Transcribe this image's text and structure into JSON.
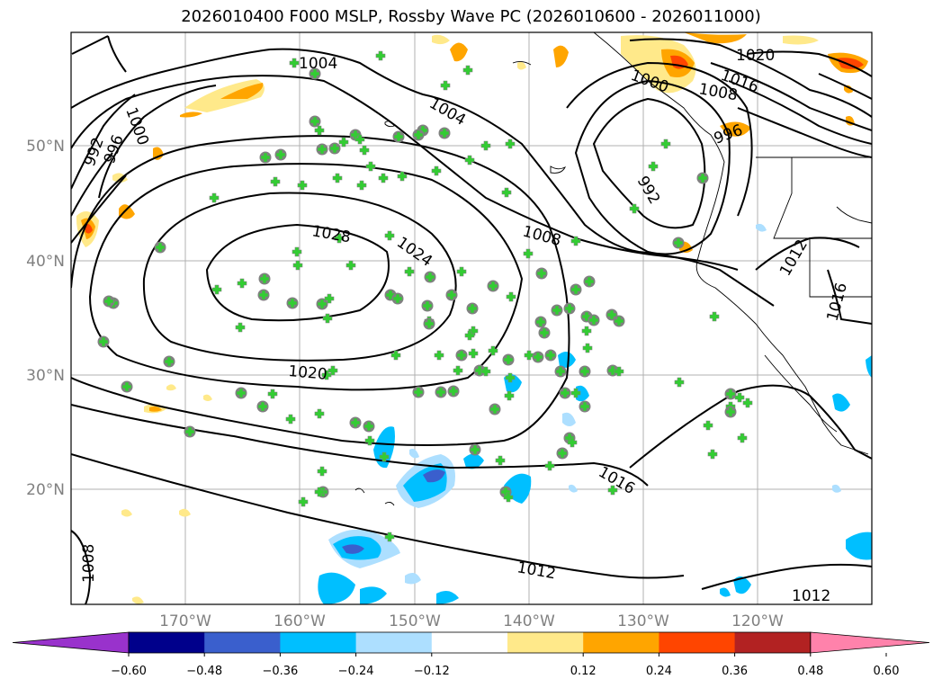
{
  "title": "2026010400 F000 MSLP, Rossby Wave PC (2026010600 - 2026011000)",
  "lat_labels": [
    "50°N",
    "40°N",
    "30°N",
    "20°N"
  ],
  "lon_labels": [
    "170°W",
    "160°W",
    "150°W",
    "140°W",
    "130°W",
    "120°W"
  ],
  "contour_labels": {
    "l1004a": "1004",
    "l1004b": "1004",
    "l1000a": "1000",
    "l1000b": "1000",
    "l992a": "992",
    "l996a": "996",
    "l992b": "992",
    "l996b": "996",
    "l1028": "1028",
    "l1024": "1024",
    "l1020": "1020",
    "l1008a": "1008",
    "l1012a": "1012",
    "l1016a": "1016",
    "l1016b": "1016",
    "l1012b": "1012",
    "l1012c": "1012",
    "l1008b": "1008",
    "l1020b": "1020",
    "l1008c": "1008",
    "l1016c": "1016"
  },
  "colorbar": {
    "ticks": [
      "−0.60",
      "−0.48",
      "−0.36",
      "−0.24",
      "−0.12",
      "0.12",
      "0.24",
      "0.36",
      "0.48",
      "0.60"
    ],
    "colors": [
      "#9932CC",
      "#00008B",
      "#3A5FCD",
      "#00BFFF",
      "#ADDFFF",
      "#FFFFFF",
      "#FFE98A",
      "#FFA500",
      "#FF4500",
      "#B22222",
      "#FF82AB"
    ]
  },
  "colors": {
    "marker_fill": "#32CD32",
    "marker_circle": "#808080",
    "positive_low": "#FFE98A",
    "positive_mid": "#FFA500",
    "positive_high": "#FF4500",
    "negative_low": "#ADDFFF",
    "negative_mid": "#00BFFF",
    "negative_high": "#3A5FCD"
  }
}
